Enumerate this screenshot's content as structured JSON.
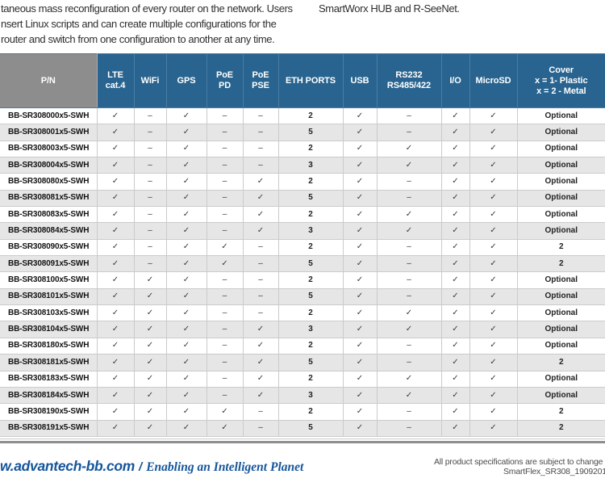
{
  "intro": {
    "left_lines": [
      "taneous mass reconfiguration of every router on the network. Users",
      "nsert Linux scripts and can create multiple configurations for the",
      "router and switch from one configuration to another at any time."
    ],
    "right_line": "SmartWorx HUB and R-SeeNet."
  },
  "table": {
    "columns": [
      {
        "key": "pn",
        "label": "P/N"
      },
      {
        "key": "lte",
        "label": "LTE\ncat.4"
      },
      {
        "key": "wifi",
        "label": "WiFi"
      },
      {
        "key": "gps",
        "label": "GPS"
      },
      {
        "key": "poe-pd",
        "label": "PoE\nPD"
      },
      {
        "key": "poe-pse",
        "label": "PoE\nPSE"
      },
      {
        "key": "eth",
        "label": "ETH PORTS"
      },
      {
        "key": "usb",
        "label": "USB"
      },
      {
        "key": "rs",
        "label": "RS232\nRS485/422"
      },
      {
        "key": "io",
        "label": "I/O"
      },
      {
        "key": "microsd",
        "label": "MicroSD"
      },
      {
        "key": "cover",
        "label": "Cover\nx = 1- Plastic\nx = 2 - Metal"
      }
    ],
    "check_glyph": "✓",
    "dash_glyph": "–",
    "rows": [
      [
        "BB-SR308000x5-SWH",
        "✓",
        "–",
        "✓",
        "–",
        "–",
        "2",
        "✓",
        "–",
        "✓",
        "✓",
        "Optional"
      ],
      [
        "BB-SR308001x5-SWH",
        "✓",
        "–",
        "✓",
        "–",
        "–",
        "5",
        "✓",
        "–",
        "✓",
        "✓",
        "Optional"
      ],
      [
        "BB-SR308003x5-SWH",
        "✓",
        "–",
        "✓",
        "–",
        "–",
        "2",
        "✓",
        "✓",
        "✓",
        "✓",
        "Optional"
      ],
      [
        "BB-SR308004x5-SWH",
        "✓",
        "–",
        "✓",
        "–",
        "–",
        "3",
        "✓",
        "✓",
        "✓",
        "✓",
        "Optional"
      ],
      [
        "BB-SR308080x5-SWH",
        "✓",
        "–",
        "✓",
        "–",
        "✓",
        "2",
        "✓",
        "–",
        "✓",
        "✓",
        "Optional"
      ],
      [
        "BB-SR308081x5-SWH",
        "✓",
        "–",
        "✓",
        "–",
        "✓",
        "5",
        "✓",
        "–",
        "✓",
        "✓",
        "Optional"
      ],
      [
        "BB-SR308083x5-SWH",
        "✓",
        "–",
        "✓",
        "–",
        "✓",
        "2",
        "✓",
        "✓",
        "✓",
        "✓",
        "Optional"
      ],
      [
        "BB-SR308084x5-SWH",
        "✓",
        "–",
        "✓",
        "–",
        "✓",
        "3",
        "✓",
        "✓",
        "✓",
        "✓",
        "Optional"
      ],
      [
        "BB-SR308090x5-SWH",
        "✓",
        "–",
        "✓",
        "✓",
        "–",
        "2",
        "✓",
        "–",
        "✓",
        "✓",
        "2"
      ],
      [
        "BB-SR308091x5-SWH",
        "✓",
        "–",
        "✓",
        "✓",
        "–",
        "5",
        "✓",
        "–",
        "✓",
        "✓",
        "2"
      ],
      [
        "BB-SR308100x5-SWH",
        "✓",
        "✓",
        "✓",
        "–",
        "–",
        "2",
        "✓",
        "–",
        "✓",
        "✓",
        "Optional"
      ],
      [
        "BB-SR308101x5-SWH",
        "✓",
        "✓",
        "✓",
        "–",
        "–",
        "5",
        "✓",
        "–",
        "✓",
        "✓",
        "Optional"
      ],
      [
        "BB-SR308103x5-SWH",
        "✓",
        "✓",
        "✓",
        "–",
        "–",
        "2",
        "✓",
        "✓",
        "✓",
        "✓",
        "Optional"
      ],
      [
        "BB-SR308104x5-SWH",
        "✓",
        "✓",
        "✓",
        "–",
        "✓",
        "3",
        "✓",
        "✓",
        "✓",
        "✓",
        "Optional"
      ],
      [
        "BB-SR308180x5-SWH",
        "✓",
        "✓",
        "✓",
        "–",
        "✓",
        "2",
        "✓",
        "–",
        "✓",
        "✓",
        "Optional"
      ],
      [
        "BB-SR308181x5-SWH",
        "✓",
        "✓",
        "✓",
        "–",
        "✓",
        "5",
        "✓",
        "–",
        "✓",
        "✓",
        "2"
      ],
      [
        "BB-SR308183x5-SWH",
        "✓",
        "✓",
        "✓",
        "–",
        "✓",
        "2",
        "✓",
        "✓",
        "✓",
        "✓",
        "Optional"
      ],
      [
        "BB-SR308184x5-SWH",
        "✓",
        "✓",
        "✓",
        "–",
        "✓",
        "3",
        "✓",
        "✓",
        "✓",
        "✓",
        "Optional"
      ],
      [
        "BB-SR308190x5-SWH",
        "✓",
        "✓",
        "✓",
        "✓",
        "–",
        "2",
        "✓",
        "–",
        "✓",
        "✓",
        "2"
      ],
      [
        "BB-SR308191x5-SWH",
        "✓",
        "✓",
        "✓",
        "✓",
        "–",
        "5",
        "✓",
        "–",
        "✓",
        "✓",
        "2"
      ]
    ]
  },
  "footer": {
    "url": "w.advantech-bb.com",
    "separator": "/",
    "tagline": "Enabling an Intelligent Planet",
    "note_line1": "All product specifications are subject to change with",
    "note_line2": "SmartFlex_SR308_19092017d"
  },
  "colors": {
    "header_blue": "#28648F",
    "header_gray": "#8D8D8D",
    "row_alt_gray": "#E6E6E6",
    "footer_blue": "#15559B"
  }
}
